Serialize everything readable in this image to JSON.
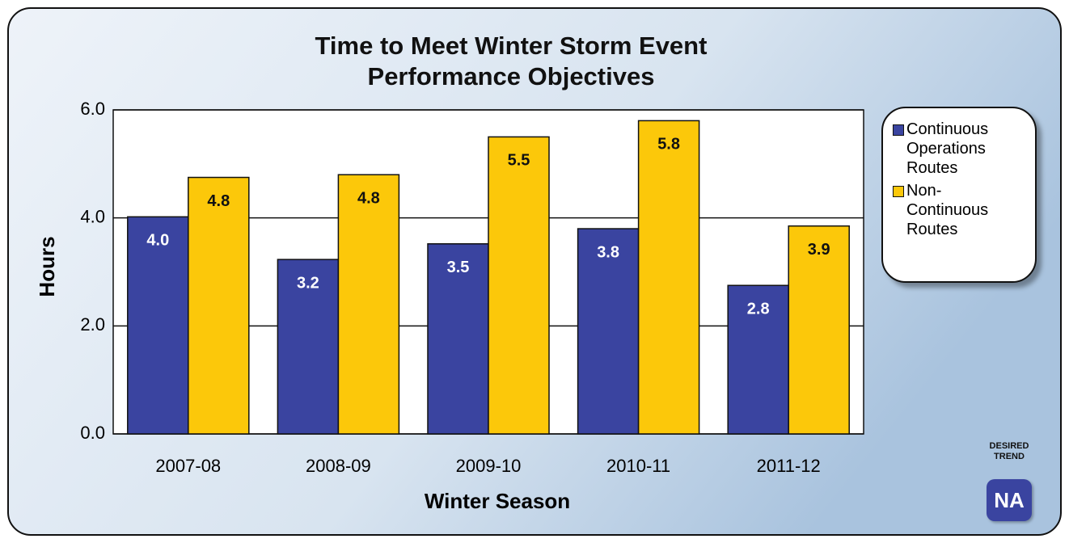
{
  "chart_data": {
    "type": "bar",
    "title": "Time to Meet Winter Storm Event Performance Objectives",
    "x_label": "Winter Season",
    "y_label": "Hours",
    "categories": [
      "2007-08",
      "2008-09",
      "2009-10",
      "2010-11",
      "2011-12"
    ],
    "series": [
      {
        "name": "Continuous Operations Routes",
        "color": "#3a44a0",
        "values": [
          4.02,
          3.23,
          3.52,
          3.8,
          2.75
        ],
        "value_labels": [
          "4.0",
          "3.2",
          "3.5",
          "3.8",
          "2.8"
        ]
      },
      {
        "name": "Non-Continuous Routes",
        "color": "#fcc80a",
        "values": [
          4.75,
          4.8,
          5.5,
          5.8,
          3.85
        ],
        "value_labels": [
          "4.8",
          "4.8",
          "5.5",
          "5.8",
          "3.9"
        ]
      }
    ],
    "ylim": [
      0,
      6
    ],
    "yticks": [
      {
        "value": 0,
        "label": "0.0"
      },
      {
        "value": 2,
        "label": "2.0"
      },
      {
        "value": 4,
        "label": "4.0"
      },
      {
        "value": 6,
        "label": "6.0"
      }
    ],
    "grid": true,
    "legend": "right",
    "desired_trend": "DESIRED TREND",
    "trend_badge": "NA"
  }
}
